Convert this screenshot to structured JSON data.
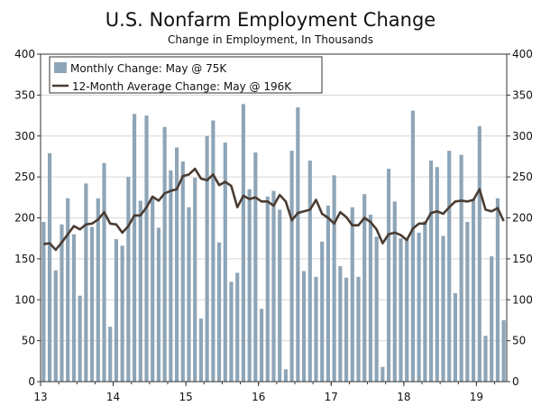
{
  "chart_data": {
    "type": "bar+line",
    "title": "U.S. Nonfarm Employment Change",
    "subtitle": "Change in Employment, In Thousands",
    "xlabel": "",
    "ylabel": "",
    "ylim": [
      0,
      400
    ],
    "y_ticks": [
      "0",
      "50",
      "100",
      "150",
      "200",
      "250",
      "300",
      "350",
      "400"
    ],
    "x_ticks": [
      "13",
      "14",
      "15",
      "16",
      "17",
      "18",
      "19"
    ],
    "legend": {
      "placement": "top-left",
      "bar_label": "Monthly Change: May @ 75K",
      "line_label": "12-Month Average Change: May @ 196K"
    },
    "colors": {
      "bar": "#8ea5b7",
      "line": "#4a3c32"
    },
    "series": [
      {
        "name": "Monthly Change",
        "type": "bar",
        "values": [
          195,
          279,
          136,
          192,
          224,
          180,
          105,
          242,
          189,
          224,
          267,
          67,
          174,
          166,
          250,
          327,
          221,
          325,
          226,
          188,
          311,
          258,
          286,
          269,
          213,
          249,
          77,
          300,
          319,
          170,
          292,
          122,
          133,
          339,
          235,
          280,
          89,
          226,
          233,
          210,
          15,
          282,
          335,
          135,
          270,
          128,
          171,
          215,
          252,
          141,
          127,
          213,
          128,
          229,
          204,
          177,
          18,
          260,
          220,
          175,
          175,
          331,
          182,
          196,
          270,
          262,
          178,
          282,
          108,
          277,
          195,
          223,
          312,
          56,
          153,
          224,
          75
        ]
      },
      {
        "name": "12-Month Average Change",
        "type": "line",
        "values": [
          168,
          169,
          161,
          170,
          180,
          190,
          186,
          192,
          193,
          198,
          207,
          193,
          192,
          182,
          190,
          203,
          203,
          213,
          226,
          221,
          230,
          233,
          235,
          251,
          253,
          260,
          248,
          246,
          253,
          240,
          244,
          239,
          213,
          227,
          223,
          225,
          220,
          220,
          215,
          228,
          220,
          197,
          206,
          208,
          210,
          222,
          205,
          200,
          193,
          207,
          201,
          191,
          191,
          200,
          195,
          186,
          169,
          180,
          182,
          179,
          173,
          187,
          193,
          193,
          206,
          208,
          205,
          213,
          220,
          221,
          220,
          222,
          235,
          210,
          208,
          212,
          196
        ]
      }
    ]
  }
}
